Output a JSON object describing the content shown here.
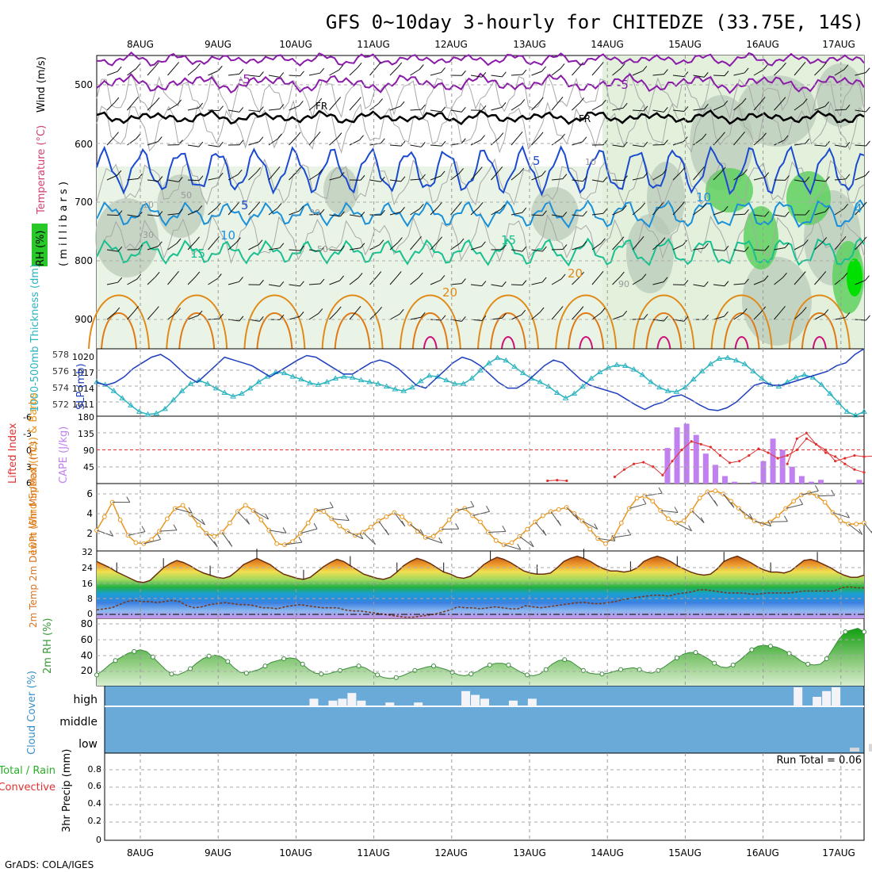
{
  "title": "GFS 0~10day 3-hourly for CHITEDZE (33.75E, 14S)",
  "credit": "GrADS: COLA/IGES",
  "days": [
    "8AUG",
    "9AUG",
    "10AUG",
    "11AUG",
    "12AUG",
    "13AUG",
    "14AUG",
    "15AUG",
    "16AUG",
    "17AUG"
  ],
  "colors": {
    "slp": "#1f3fbf",
    "thickness": "#2ab4c0",
    "cape": "#c080f0",
    "lifted": "#e03030",
    "wind10": "#e8961e",
    "temp2m": "#d8701e",
    "rh2m": "#3a9a3a",
    "cloud": "#6aaad8",
    "purple": "#8a1aa8",
    "blue5": "#1a4ad0",
    "blue10": "#1a90d8",
    "teal15": "#18c090",
    "orange20": "#e08a18",
    "magenta": "#d0107a"
  },
  "panels": {
    "upper": {
      "ylabel_rh": "RH (%)",
      "ylabel_temp": "Temperature (°C)",
      "ylabel_wind": "Wind (m/s)",
      "ylabel_p": "( m i l l i b a r s )",
      "yticks": [
        "500",
        "600",
        "700",
        "800",
        "900"
      ],
      "labels": {
        "m5a": "-5",
        "m5b": "-5",
        "fr1": "FR",
        "fr2": "FR",
        "b5a": "5",
        "b5b": "5",
        "b10a": "10",
        "b10b": "10",
        "t15a": "15",
        "t15b": "15",
        "o20a": "20",
        "o20b": "20",
        "g30a": "30",
        "g30b": "30",
        "g50a": "50",
        "g50b": "50",
        "g10a": "10",
        "g10b": "10",
        "g90": "90",
        "x4": "4"
      }
    },
    "slp": {
      "ylabel_thick": "1000-500mb Thickness (dm)",
      "ylabel_slp": "SLP (mb)",
      "left_ticks": [
        "578",
        "576",
        "574",
        "572"
      ],
      "right_ticks": [
        "1020",
        "1017",
        "1014",
        "1011"
      ]
    },
    "cape": {
      "ylabel_li": "Lifted Index",
      "ylabel_cape": "CAPE (J/kg)",
      "left_ticks": [
        "-6",
        "-3",
        "0",
        "3",
        "6"
      ],
      "right_ticks": [
        "180",
        "135",
        "90",
        "45"
      ]
    },
    "wind": {
      "ylabel": "10m Wind Speed (m/s) & Barbs",
      "ticks": [
        "6",
        "4",
        "2"
      ]
    },
    "temp": {
      "ylabel": "2m Temp 2m DewPt (6hr Min/Max) (°C)",
      "ticks": [
        "32",
        "24",
        "16",
        "8",
        "0"
      ]
    },
    "rh": {
      "ylabel": "2m RH (%)",
      "ticks": [
        "80",
        "60",
        "40",
        "20"
      ]
    },
    "cloud": {
      "ylabel": "Cloud Cover (%)",
      "levels": [
        "high",
        "middle",
        "low"
      ]
    },
    "precip": {
      "ylabel_a": "Total / Rain",
      "ylabel_b": "Convective",
      "ylabel_c": "3hr Precip (mm)",
      "ticks": [
        "0.8",
        "0.6",
        "0.4",
        "0.2",
        "0"
      ],
      "run_total": "Run Total = 0.06"
    }
  },
  "chart_data": [
    {
      "type": "line",
      "name": "SLP (mb)",
      "ylim": [
        1009,
        1021
      ],
      "x": "3-hourly steps 0-80",
      "values": [
        1015,
        1014.5,
        1015,
        1016,
        1017.5,
        1018.5,
        1019.5,
        1020,
        1019,
        1017.5,
        1016,
        1015,
        1016.5,
        1018,
        1019.5,
        1019,
        1018.5,
        1018,
        1017,
        1016,
        1017,
        1018,
        1019,
        1019.8,
        1019.5,
        1018.5,
        1017.5,
        1016.5,
        1016.5,
        1017.5,
        1018.5,
        1019,
        1018.5,
        1017.5,
        1016,
        1014.5,
        1014,
        1015.5,
        1017,
        1018.5,
        1019.5,
        1019,
        1018,
        1016.5,
        1015,
        1014,
        1014,
        1015,
        1016.5,
        1018,
        1019,
        1018.5,
        1017,
        1015.5,
        1014.5,
        1014,
        1013.5,
        1013,
        1012,
        1011,
        1010.2,
        1011,
        1011.5,
        1012.5,
        1012.8,
        1012,
        1011,
        1010.2,
        1010,
        1010.5,
        1011.5,
        1013,
        1014.5,
        1015,
        1014.5,
        1014.5,
        1015,
        1015.5,
        1016,
        1016.5,
        1017,
        1018,
        1018.5,
        1020,
        1021
      ]
    },
    {
      "type": "line",
      "name": "1000-500mb Thickness (dm)",
      "ylim": [
        571,
        578.5
      ],
      "values": [
        574.8,
        574.5,
        573.8,
        573,
        572.2,
        571.5,
        571.2,
        571.3,
        571.8,
        572.8,
        573.8,
        574.6,
        575,
        574.6,
        574.1,
        573.6,
        573.2,
        573.5,
        574.1,
        574.8,
        575.4,
        575.9,
        575.8,
        575.4,
        575.1,
        574.7,
        574.5,
        574.8,
        575.2,
        575.4,
        575.3,
        575,
        574.8,
        574.6,
        574.3,
        574,
        573.8,
        574.2,
        574.9,
        575.5,
        575.4,
        575,
        574.6,
        574.6,
        575.2,
        576.1,
        576.9,
        577.5,
        577.2,
        576.5,
        575.8,
        575.2,
        574.8,
        574.3,
        573.6,
        573,
        573.5,
        574.3,
        575.2,
        575.9,
        576.4,
        576.7,
        576.6,
        576.2,
        575.6,
        574.8,
        574.2,
        573.8,
        573.7,
        574.2,
        575.1,
        576,
        576.8,
        577.4,
        577.5,
        577.2,
        576.8,
        576,
        575.2,
        574.5,
        574.3,
        574.8,
        575.3,
        575.6,
        575.3,
        574.5,
        573.5,
        572.5,
        571.5,
        571.1,
        571.5
      ]
    },
    {
      "type": "bar",
      "name": "CAPE (J/kg)",
      "ylim": [
        0,
        180
      ],
      "bars": [
        {
          "x": 59.5,
          "v": 95
        },
        {
          "x": 60.5,
          "v": 150
        },
        {
          "x": 61.5,
          "v": 160
        },
        {
          "x": 62.5,
          "v": 130
        },
        {
          "x": 63.5,
          "v": 80
        },
        {
          "x": 64.5,
          "v": 50
        },
        {
          "x": 65.5,
          "v": 20
        },
        {
          "x": 66.5,
          "v": 5
        },
        {
          "x": 68.5,
          "v": 5
        },
        {
          "x": 69.5,
          "v": 60
        },
        {
          "x": 70.5,
          "v": 120
        },
        {
          "x": 71.5,
          "v": 90
        },
        {
          "x": 72.5,
          "v": 45
        },
        {
          "x": 73.5,
          "v": 20
        },
        {
          "x": 74.5,
          "v": 5
        },
        {
          "x": 75.5,
          "v": 10
        },
        {
          "x": 79.5,
          "v": 10
        }
      ]
    },
    {
      "type": "line",
      "name": "Lifted Index",
      "ylim": [
        6,
        -6
      ],
      "segments": [
        [
          [
            47,
            5.5
          ],
          [
            48,
            5.4
          ],
          [
            49,
            5.5
          ]
        ],
        [
          [
            54,
            4.8
          ],
          [
            55,
            3.5
          ],
          [
            56,
            2.5
          ],
          [
            57,
            2.2
          ],
          [
            58,
            3
          ],
          [
            59,
            4.5
          ],
          [
            60,
            2
          ],
          [
            61,
            0
          ],
          [
            62,
            -1.5
          ],
          [
            63,
            -1
          ],
          [
            64,
            -0.5
          ],
          [
            65,
            1
          ],
          [
            66,
            2.3
          ],
          [
            67,
            2
          ],
          [
            68,
            1
          ],
          [
            69,
            -0.2
          ],
          [
            70,
            0.5
          ],
          [
            71,
            1.5
          ],
          [
            72,
            1
          ],
          [
            73,
            0
          ],
          [
            74,
            -2
          ],
          [
            75,
            -1
          ],
          [
            76,
            0.5
          ],
          [
            77,
            1.2
          ],
          [
            78,
            2.5
          ],
          [
            79,
            3.5
          ],
          [
            80,
            4
          ]
        ],
        [
          [
            72,
            2.5
          ],
          [
            73,
            -2
          ],
          [
            74,
            -3
          ],
          [
            75,
            -1
          ],
          [
            76,
            0
          ],
          [
            77,
            2
          ],
          [
            78,
            1.5
          ],
          [
            79,
            1
          ],
          [
            80,
            1.2
          ],
          [
            81,
            1.1
          ],
          [
            82,
            1.0
          ],
          [
            83,
            1.2
          ],
          [
            84,
            1.1
          ]
        ]
      ]
    },
    {
      "type": "line",
      "name": "10m Wind Speed (m/s)",
      "ylim": [
        0.5,
        7
      ],
      "values": [
        2.5,
        3.8,
        5.2,
        3.5,
        2,
        1.3,
        1.2,
        1.6,
        2.4,
        3.6,
        4.6,
        4.9,
        4,
        3,
        2.2,
        1.9,
        2.3,
        3.2,
        4.3,
        4.9,
        4.4,
        3.5,
        2.5,
        1.2,
        1.1,
        1.4,
        2.2,
        3.2,
        4.4,
        4.3,
        3.6,
        2.9,
        2.4,
        2,
        2.3,
        2.8,
        3.4,
        3.8,
        4.2,
        3.8,
        3.1,
        2.4,
        1.8,
        1.9,
        2.6,
        3.5,
        4.4,
        4.6,
        3.9,
        3.3,
        2.3,
        1.5,
        1.1,
        1.3,
        1.9,
        2.6,
        3.3,
        3.9,
        4.3,
        4.5,
        4.7,
        4.1,
        3.4,
        2.6,
        1.7,
        1.2,
        1.8,
        3.2,
        4.6,
        5.6,
        5.8,
        5.3,
        4.4,
        3.6,
        3.2,
        3.4,
        4.4,
        5.6,
        6.2,
        6.3,
        6,
        5.3,
        4.6,
        3.8,
        3.4,
        3.1,
        3.3,
        3.9,
        4.6,
        5.3,
        5.9,
        6.1,
        5.8,
        5.2,
        4.2,
        3.4,
        3.1,
        3.1,
        3.2
      ]
    },
    {
      "type": "area",
      "name": "2m Temp (°C)",
      "ylim": [
        0,
        32
      ],
      "values": [
        27,
        25.5,
        24,
        22,
        20.5,
        19,
        17.5,
        17,
        18,
        21,
        24,
        26,
        27.5,
        26.5,
        25,
        23,
        21.5,
        20.5,
        19.5,
        19,
        20,
        22.5,
        25.5,
        27,
        28.5,
        27,
        25.5,
        23,
        21,
        20,
        19,
        18.5,
        19.5,
        22,
        24.5,
        26.5,
        28,
        27,
        25,
        23,
        21,
        20,
        19,
        18.5,
        19.5,
        22,
        25,
        27,
        28.5,
        27.5,
        26,
        24,
        22,
        21,
        19.5,
        19,
        20,
        22.5,
        25.5,
        27.5,
        29,
        28,
        26.5,
        24.5,
        22.5,
        21.5,
        21,
        21,
        21.5,
        24,
        27,
        28.5,
        29.5,
        28.5,
        27,
        25,
        23.5,
        22.5,
        22.5,
        22,
        22.5,
        24,
        27,
        28.5,
        29.5,
        28.5,
        27,
        25,
        23.5,
        22,
        21,
        20.5,
        21,
        23.5,
        27,
        28.5,
        29.5,
        28,
        26.5,
        24.5,
        23,
        22,
        22,
        21.5,
        22.5,
        25,
        27.5,
        28,
        27,
        25.5,
        24,
        22,
        20.5,
        19.5,
        19.5,
        20.5
      ]
    },
    {
      "type": "line",
      "name": "2m DewPt (°C)",
      "ylim": [
        0,
        32
      ],
      "values": [
        4,
        4.5,
        5,
        6.5,
        8,
        8.5,
        8,
        8,
        7.5,
        8,
        8.5,
        8,
        6,
        5,
        5.5,
        6.5,
        7,
        7.5,
        7,
        6.5,
        6.5,
        6,
        5,
        5,
        4.5,
        5.5,
        6,
        6.5,
        6,
        5.5,
        5,
        5,
        5,
        4,
        3.5,
        3.5,
        3,
        2.5,
        2,
        1.5,
        1,
        0.5,
        0.5,
        1,
        1.5,
        2,
        3,
        4,
        5.5,
        5,
        5,
        4.5,
        5,
        5.5,
        5,
        4.5,
        4.5,
        6,
        5.5,
        5,
        5.5,
        6,
        6.5,
        7,
        7.5,
        7.5,
        7,
        7,
        7.5,
        8,
        9,
        9.5,
        10,
        10.5,
        11,
        11,
        10.5,
        11.5,
        12,
        12.5,
        13.5,
        13.5,
        13,
        12.5,
        12,
        12,
        12,
        11.5,
        11.5,
        12,
        12,
        12,
        12,
        12.5,
        13,
        13,
        13,
        13,
        13,
        14.5,
        15,
        14.5,
        14.5
      ]
    },
    {
      "type": "area",
      "name": "2m RH (%)",
      "ylim": [
        10,
        85
      ],
      "values": [
        22,
        27,
        33,
        38,
        42,
        46,
        48,
        50,
        48,
        42,
        35,
        28,
        23,
        22,
        25,
        29,
        35,
        40,
        43,
        44,
        42,
        37,
        30,
        25,
        24,
        26,
        28,
        32,
        36,
        38,
        40,
        41,
        40,
        34,
        28,
        24,
        23,
        23,
        25,
        27,
        29,
        31,
        32,
        30,
        26,
        22,
        19,
        18,
        19,
        21,
        24,
        27,
        29,
        31,
        32,
        30,
        28,
        25,
        22,
        21,
        23,
        26,
        30,
        33,
        35,
        35,
        33,
        29,
        25,
        22,
        21,
        23,
        28,
        34,
        38,
        39,
        37,
        32,
        27,
        24,
        23,
        23,
        24,
        26,
        28,
        29,
        30,
        28,
        25,
        24,
        27,
        31,
        36,
        41,
        45,
        47,
        47,
        44,
        40,
        35,
        31,
        30,
        33,
        38,
        44,
        50,
        54,
        55,
        54,
        53,
        50,
        46,
        42,
        37,
        34,
        33,
        34,
        40,
        51,
        62,
        70,
        72,
        74,
        70
      ]
    },
    {
      "type": "bar",
      "name": "High cloud cover (%)",
      "ylim": [
        0,
        100
      ],
      "bars": [
        {
          "x": 22,
          "v": 40
        },
        {
          "x": 24,
          "v": 30
        },
        {
          "x": 25,
          "v": 40
        },
        {
          "x": 26,
          "v": 70
        },
        {
          "x": 27,
          "v": 30
        },
        {
          "x": 30,
          "v": 20
        },
        {
          "x": 33,
          "v": 20
        },
        {
          "x": 38,
          "v": 80
        },
        {
          "x": 39,
          "v": 60
        },
        {
          "x": 40,
          "v": 40
        },
        {
          "x": 43,
          "v": 30
        },
        {
          "x": 45,
          "v": 40
        },
        {
          "x": 73,
          "v": 100
        },
        {
          "x": 75,
          "v": 50
        },
        {
          "x": 76,
          "v": 80
        },
        {
          "x": 77,
          "v": 100
        }
      ]
    },
    {
      "type": "bar",
      "name": "Low cloud cover (%)",
      "ylim": [
        0,
        100
      ],
      "bars": [
        {
          "x": 79,
          "v": 20
        },
        {
          "x": 81,
          "v": 40
        },
        {
          "x": 82,
          "v": 40
        }
      ]
    },
    {
      "type": "bar",
      "name": "3hr Precip (mm)",
      "ylim": [
        0,
        1
      ],
      "bars": []
    }
  ]
}
